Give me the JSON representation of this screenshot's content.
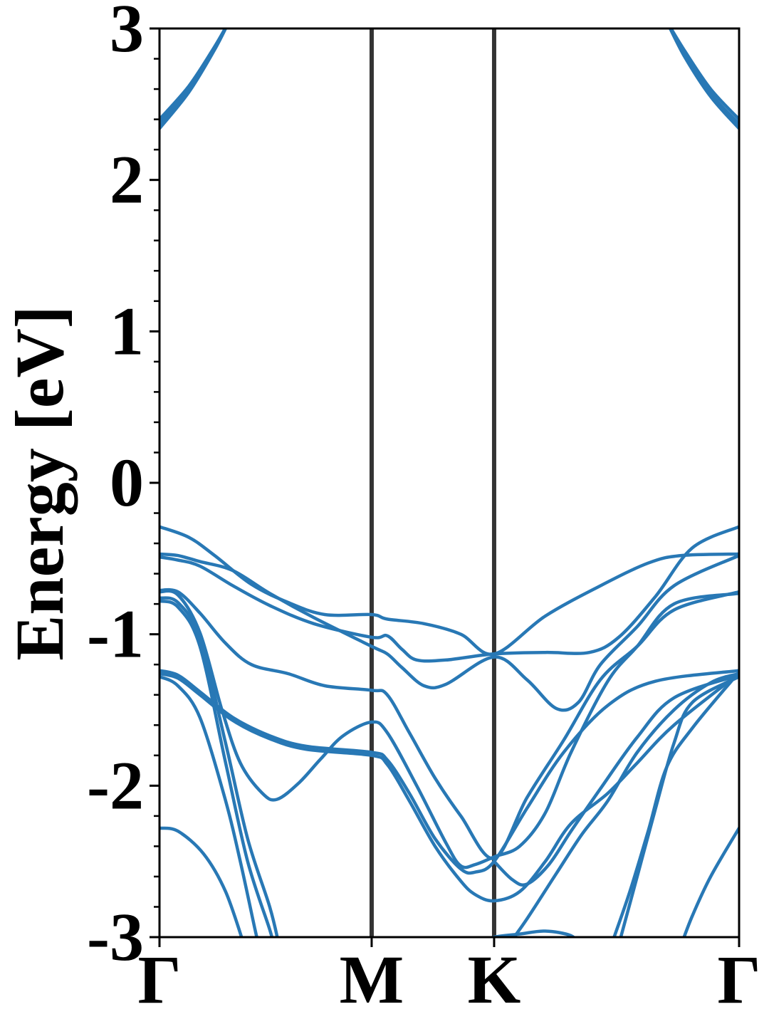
{
  "chart_data": {
    "type": "line",
    "title": "",
    "ylabel": "Energy [eV]",
    "xlabel": "",
    "ylim": [
      -3,
      3
    ],
    "yticks": [
      "3",
      "2",
      "1",
      "0",
      "-1",
      "-2",
      "-3"
    ],
    "ytick_values": [
      3,
      2,
      1,
      0,
      -1,
      -2,
      -3
    ],
    "x_path": {
      "segments": 3,
      "labels": [
        "Γ",
        "M",
        "K",
        "Γ"
      ],
      "positions": [
        0,
        0.5774,
        0.9107,
        1.5774
      ]
    },
    "grid": false,
    "legend": "none",
    "colors": {
      "bands": "#2878b5",
      "k_lines": "#333333",
      "axes": "#000000"
    },
    "series": [
      {
        "values": [
          [
            0,
            2.4
          ],
          [
            0.08,
            2.62
          ],
          [
            0.15,
            2.88
          ],
          [
            0.19,
            3.05
          ]
        ]
      },
      {
        "values": [
          [
            0,
            2.37
          ],
          [
            0.08,
            2.6
          ],
          [
            0.15,
            2.87
          ],
          [
            0.19,
            3.05
          ]
        ]
      },
      {
        "values": [
          [
            0,
            2.34
          ],
          [
            0.08,
            2.58
          ],
          [
            0.15,
            2.86
          ],
          [
            0.19,
            3.05
          ]
        ]
      },
      {
        "values": [
          [
            1.38,
            3.05
          ],
          [
            1.43,
            2.85
          ],
          [
            1.5,
            2.6
          ],
          [
            1.5774,
            2.4
          ]
        ]
      },
      {
        "values": [
          [
            1.38,
            3.05
          ],
          [
            1.43,
            2.83
          ],
          [
            1.5,
            2.57
          ],
          [
            1.5774,
            2.37
          ]
        ]
      },
      {
        "values": [
          [
            1.38,
            3.05
          ],
          [
            1.43,
            2.81
          ],
          [
            1.5,
            2.55
          ],
          [
            1.5774,
            2.34
          ]
        ]
      },
      {
        "values": [
          [
            0,
            -0.29
          ],
          [
            0.08,
            -0.36
          ],
          [
            0.15,
            -0.48
          ],
          [
            0.25,
            -0.67
          ],
          [
            0.35,
            -0.79
          ],
          [
            0.45,
            -0.87
          ],
          [
            0.5774,
            -0.87
          ],
          [
            0.62,
            -0.9
          ],
          [
            0.72,
            -0.93
          ],
          [
            0.82,
            -1.0
          ],
          [
            0.9107,
            -1.13
          ],
          [
            1.05,
            -0.88
          ],
          [
            1.2,
            -0.68
          ],
          [
            1.33,
            -0.53
          ],
          [
            1.42,
            -0.48
          ],
          [
            1.5774,
            -0.47
          ]
        ]
      },
      {
        "values": [
          [
            0,
            -0.49
          ],
          [
            0.05,
            -0.51
          ],
          [
            0.11,
            -0.55
          ],
          [
            0.2,
            -0.68
          ],
          [
            0.3,
            -0.81
          ],
          [
            0.42,
            -0.93
          ],
          [
            0.5774,
            -1.02
          ],
          [
            0.62,
            -1.01
          ],
          [
            0.66,
            -1.1
          ],
          [
            0.7,
            -1.17
          ],
          [
            0.78,
            -1.17
          ],
          [
            0.9107,
            -1.13
          ],
          [
            1.05,
            -1.12
          ],
          [
            1.17,
            -1.12
          ],
          [
            1.25,
            -1.02
          ],
          [
            1.35,
            -0.75
          ],
          [
            1.45,
            -0.43
          ],
          [
            1.5774,
            -0.29
          ]
        ]
      },
      {
        "values": [
          [
            0,
            -0.47
          ],
          [
            0.05,
            -0.48
          ],
          [
            0.11,
            -0.52
          ],
          [
            0.2,
            -0.58
          ],
          [
            0.3,
            -0.73
          ],
          [
            0.42,
            -0.89
          ],
          [
            0.5774,
            -1.08
          ],
          [
            0.62,
            -1.13
          ],
          [
            0.66,
            -1.22
          ],
          [
            0.72,
            -1.34
          ],
          [
            0.78,
            -1.33
          ],
          [
            0.9107,
            -1.15
          ],
          [
            1.0,
            -1.3
          ],
          [
            1.08,
            -1.49
          ],
          [
            1.14,
            -1.45
          ],
          [
            1.2,
            -1.2
          ],
          [
            1.3,
            -0.95
          ],
          [
            1.4,
            -0.68
          ],
          [
            1.5774,
            -0.48
          ]
        ]
      },
      {
        "values": [
          [
            0,
            -0.71
          ],
          [
            0.05,
            -0.72
          ],
          [
            0.11,
            -0.86
          ],
          [
            0.18,
            -1.06
          ],
          [
            0.25,
            -1.2
          ],
          [
            0.35,
            -1.26
          ],
          [
            0.45,
            -1.34
          ],
          [
            0.5774,
            -1.37
          ],
          [
            0.62,
            -1.4
          ],
          [
            0.68,
            -1.65
          ],
          [
            0.75,
            -1.95
          ],
          [
            0.82,
            -2.2
          ],
          [
            0.9107,
            -2.48
          ],
          [
            1.0,
            -2.08
          ],
          [
            1.1,
            -1.7
          ],
          [
            1.2,
            -1.3
          ],
          [
            1.3,
            -1.08
          ],
          [
            1.4,
            -0.84
          ],
          [
            1.5774,
            -0.72
          ]
        ]
      },
      {
        "values": [
          [
            0,
            -0.72
          ],
          [
            0.05,
            -0.74
          ],
          [
            0.11,
            -0.99
          ],
          [
            0.17,
            -1.5
          ],
          [
            0.22,
            -1.85
          ],
          [
            0.28,
            -2.05
          ],
          [
            0.32,
            -2.09
          ],
          [
            0.38,
            -1.98
          ],
          [
            0.44,
            -1.82
          ],
          [
            0.5,
            -1.67
          ],
          [
            0.5774,
            -1.58
          ],
          [
            0.62,
            -1.65
          ],
          [
            0.7,
            -2.0
          ],
          [
            0.78,
            -2.38
          ],
          [
            0.82,
            -2.53
          ],
          [
            0.86,
            -2.52
          ],
          [
            0.9107,
            -2.47
          ],
          [
            0.98,
            -2.4
          ],
          [
            1.05,
            -2.18
          ],
          [
            1.12,
            -1.78
          ],
          [
            1.22,
            -1.31
          ],
          [
            1.3,
            -1.08
          ],
          [
            1.4,
            -0.8
          ],
          [
            1.5774,
            -0.73
          ]
        ]
      },
      {
        "values": [
          [
            0,
            -0.76
          ],
          [
            0.05,
            -0.79
          ],
          [
            0.11,
            -1.03
          ],
          [
            0.18,
            -1.72
          ],
          [
            0.24,
            -2.35
          ],
          [
            0.3,
            -2.8
          ],
          [
            0.325,
            -3.05
          ]
        ]
      },
      {
        "values": [
          [
            0,
            -0.78
          ],
          [
            0.05,
            -0.82
          ],
          [
            0.11,
            -1.08
          ],
          [
            0.18,
            -1.85
          ],
          [
            0.24,
            -2.5
          ],
          [
            0.3,
            -2.95
          ],
          [
            0.31,
            -3.05
          ]
        ]
      },
      {
        "values": [
          [
            0,
            -1.24
          ],
          [
            0.05,
            -1.27
          ],
          [
            0.11,
            -1.38
          ],
          [
            0.2,
            -1.55
          ],
          [
            0.3,
            -1.67
          ],
          [
            0.4,
            -1.74
          ],
          [
            0.5774,
            -1.78
          ],
          [
            0.62,
            -1.83
          ],
          [
            0.68,
            -2.05
          ],
          [
            0.75,
            -2.35
          ],
          [
            0.82,
            -2.55
          ],
          [
            0.86,
            -2.57
          ],
          [
            0.9107,
            -2.5
          ],
          [
            1.0,
            -2.15
          ],
          [
            1.1,
            -1.78
          ],
          [
            1.22,
            -1.47
          ],
          [
            1.35,
            -1.31
          ],
          [
            1.5774,
            -1.24
          ]
        ]
      },
      {
        "values": [
          [
            0,
            -1.26
          ],
          [
            0.05,
            -1.29
          ],
          [
            0.11,
            -1.4
          ],
          [
            0.2,
            -1.57
          ],
          [
            0.3,
            -1.69
          ],
          [
            0.4,
            -1.76
          ],
          [
            0.5774,
            -1.8
          ],
          [
            0.62,
            -1.86
          ],
          [
            0.68,
            -2.1
          ],
          [
            0.75,
            -2.4
          ],
          [
            0.82,
            -2.63
          ],
          [
            0.86,
            -2.72
          ],
          [
            0.9107,
            -2.76
          ],
          [
            0.98,
            -2.7
          ],
          [
            1.05,
            -2.5
          ],
          [
            1.12,
            -2.25
          ],
          [
            1.22,
            -2.05
          ],
          [
            1.3,
            -1.85
          ],
          [
            1.4,
            -1.6
          ],
          [
            1.5774,
            -1.26
          ]
        ]
      },
      {
        "values": [
          [
            0,
            -1.28
          ],
          [
            0.05,
            -1.34
          ],
          [
            0.11,
            -1.55
          ],
          [
            0.18,
            -2.1
          ],
          [
            0.22,
            -2.5
          ],
          [
            0.26,
            -2.95
          ],
          [
            0.27,
            -3.05
          ]
        ]
      },
      {
        "values": [
          [
            0,
            -2.28
          ],
          [
            0.05,
            -2.3
          ],
          [
            0.12,
            -2.45
          ],
          [
            0.18,
            -2.7
          ],
          [
            0.23,
            -3.05
          ]
        ]
      },
      {
        "values": [
          [
            1.42,
            -3.05
          ],
          [
            1.45,
            -2.86
          ],
          [
            1.5,
            -2.6
          ],
          [
            1.5774,
            -2.28
          ]
        ]
      },
      {
        "values": [
          [
            1.25,
            -3.05
          ],
          [
            1.3,
            -2.6
          ],
          [
            1.35,
            -2.15
          ],
          [
            1.4,
            -1.72
          ],
          [
            1.45,
            -1.45
          ],
          [
            1.5774,
            -1.28
          ]
        ]
      },
      {
        "values": [
          [
            1.23,
            -3.05
          ],
          [
            1.28,
            -2.7
          ],
          [
            1.33,
            -2.3
          ],
          [
            1.38,
            -1.88
          ],
          [
            1.45,
            -1.62
          ],
          [
            1.5774,
            -1.25
          ]
        ]
      },
      {
        "values": [
          [
            0.9107,
            -2.5
          ],
          [
            0.96,
            -2.62
          ],
          [
            1.0,
            -2.65
          ],
          [
            1.06,
            -2.52
          ],
          [
            1.12,
            -2.3
          ],
          [
            1.2,
            -2.02
          ],
          [
            1.3,
            -1.68
          ],
          [
            1.4,
            -1.42
          ],
          [
            1.5774,
            -1.27
          ]
        ]
      },
      {
        "values": [
          [
            0.85,
            -3.05
          ],
          [
            0.9107,
            -3.0
          ],
          [
            0.98,
            -2.98
          ],
          [
            1.05,
            -2.96
          ],
          [
            1.12,
            -2.99
          ],
          [
            1.14,
            -3.05
          ]
        ]
      },
      {
        "values": [
          [
            0.95,
            -3.05
          ],
          [
            1.0,
            -2.88
          ],
          [
            1.08,
            -2.58
          ],
          [
            1.15,
            -2.32
          ],
          [
            1.22,
            -2.1
          ],
          [
            1.3,
            -1.78
          ],
          [
            1.4,
            -1.5
          ],
          [
            1.5,
            -1.32
          ],
          [
            1.5774,
            -1.26
          ]
        ]
      }
    ]
  }
}
